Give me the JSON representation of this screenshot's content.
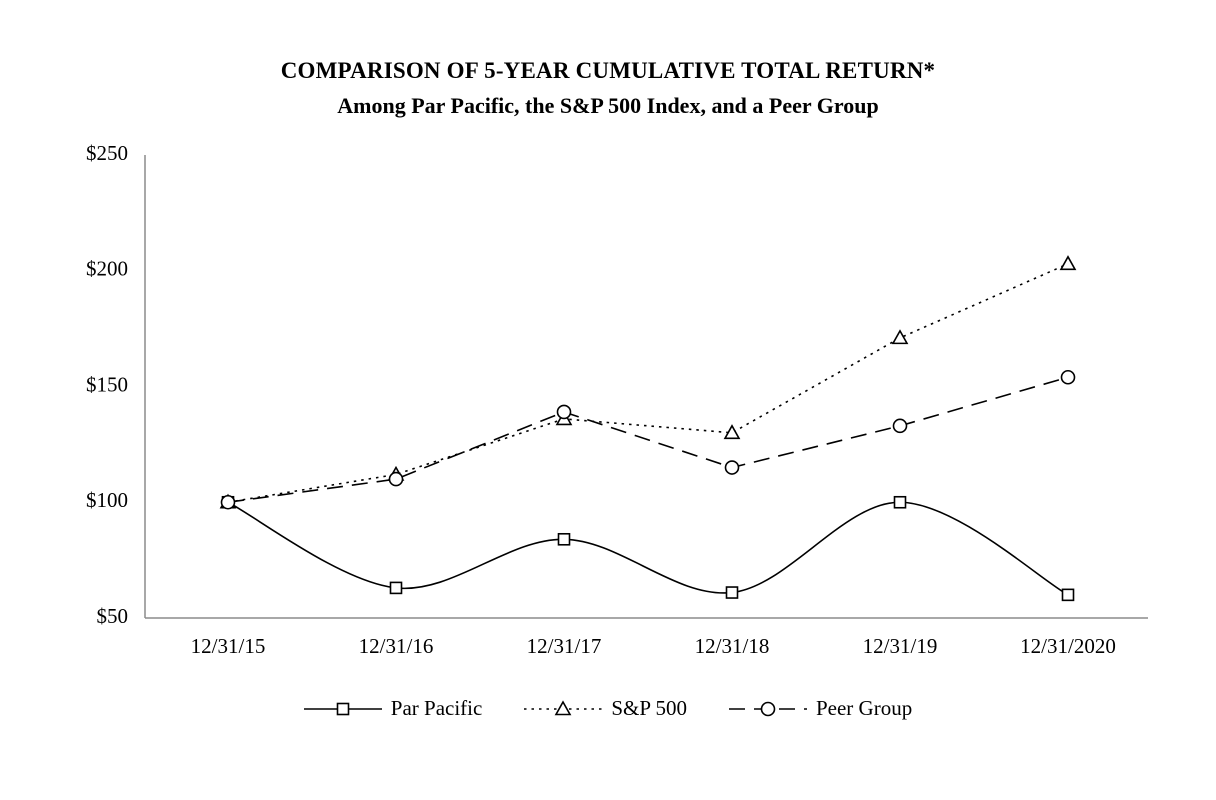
{
  "chart_data": {
    "type": "line",
    "title": "COMPARISON OF 5-YEAR CUMULATIVE TOTAL RETURN*",
    "subtitle": "Among Par Pacific, the S&P 500 Index, and a Peer Group",
    "x_labels": [
      "12/31/15",
      "12/31/16",
      "12/31/17",
      "12/31/18",
      "12/31/19",
      "12/31/2020"
    ],
    "y_ticks": [
      {
        "label": "$250",
        "value": 250
      },
      {
        "label": "$200",
        "value": 200
      },
      {
        "label": "$150",
        "value": 150
      },
      {
        "label": "$100",
        "value": 100
      },
      {
        "label": "$50",
        "value": 50
      }
    ],
    "ylim": [
      50,
      250
    ],
    "grid": false,
    "legend_position": "bottom",
    "axis_color": "#8c8c8c",
    "line_color": "#000000",
    "marker_fill": "#ffffff",
    "series": [
      {
        "name": "Par Pacific",
        "marker": "square",
        "line": "solid",
        "smooth": true,
        "values": [
          100,
          63,
          84,
          61,
          100,
          60
        ]
      },
      {
        "name": "S&P 500",
        "marker": "triangle",
        "line": "dotted",
        "smooth": false,
        "values": [
          100,
          112,
          136,
          130,
          171,
          203
        ]
      },
      {
        "name": "Peer Group",
        "marker": "circle",
        "line": "dashed",
        "smooth": false,
        "values": [
          100,
          110,
          139,
          115,
          133,
          154
        ]
      }
    ]
  }
}
